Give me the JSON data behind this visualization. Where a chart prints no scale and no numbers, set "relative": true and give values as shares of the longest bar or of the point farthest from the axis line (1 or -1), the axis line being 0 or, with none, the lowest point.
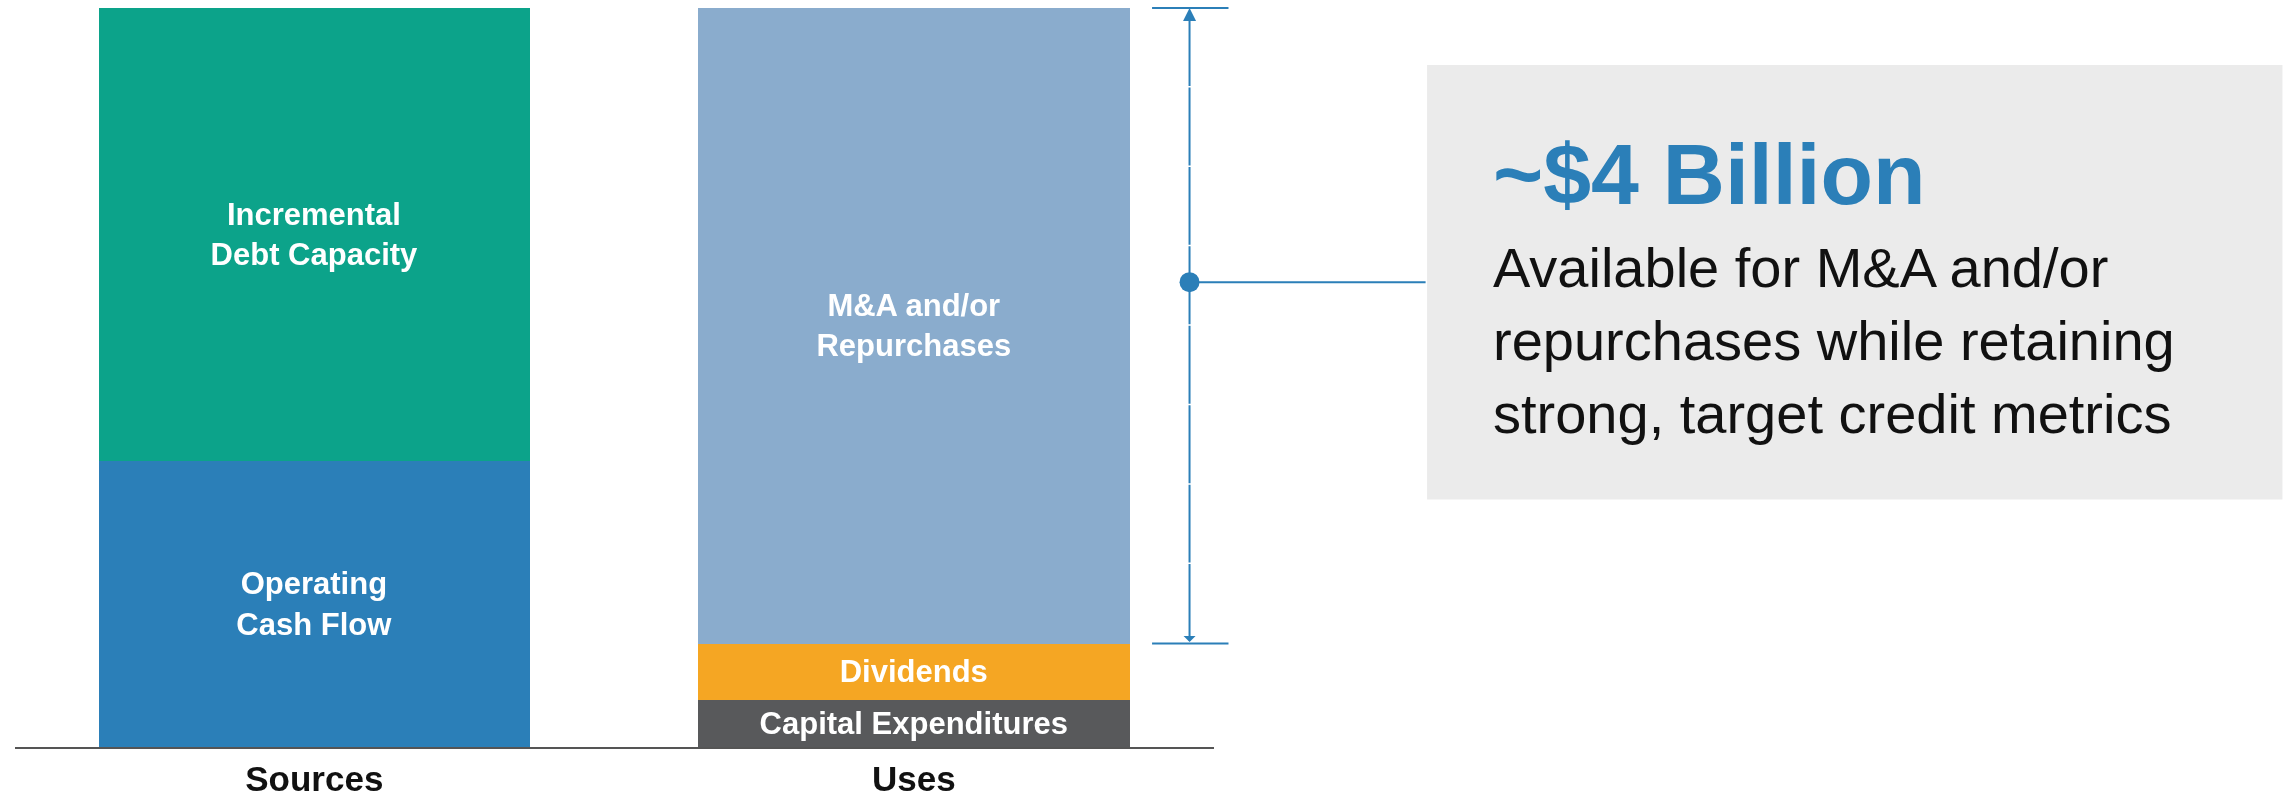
{
  "chart_data": {
    "type": "bar",
    "stacked": true,
    "relative": true,
    "legend": false,
    "categories": [
      "Sources",
      "Uses"
    ],
    "series": [
      {
        "name": "Operating Cash Flow",
        "color": "#2b7fb8",
        "values": [
          0.387,
          null
        ]
      },
      {
        "name": "Incremental Debt Capacity",
        "color": "#0ca38a",
        "values": [
          0.613,
          null
        ]
      },
      {
        "name": "Capital Expenditures",
        "color": "#58595b",
        "values": [
          null,
          0.063
        ]
      },
      {
        "name": "Dividends",
        "color": "#f5a623",
        "values": [
          null,
          0.077
        ]
      },
      {
        "name": "M&A and/or Repurchases",
        "color": "#8aaccd",
        "values": [
          null,
          0.86
        ]
      }
    ],
    "annotations": [
      "~$4 Billion",
      "Available for M&A and/or repurchases while retaining strong, target credit metrics"
    ]
  }
}
